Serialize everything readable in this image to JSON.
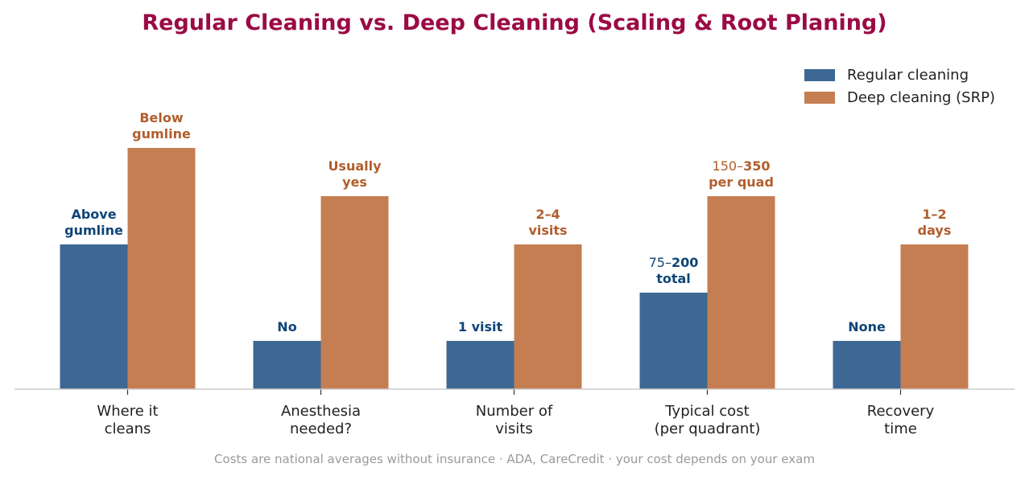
{
  "colors": {
    "title": "#9b0a45",
    "regular": "#3d6893",
    "deep": "#c57e52",
    "regular_label": "#0f4577",
    "deep_label": "#b15e2d",
    "axis": "#cccccc",
    "note": "#9a9a9a",
    "tick_text": "#222222"
  },
  "chart_data": {
    "type": "bar",
    "title": "Regular Cleaning vs. Deep Cleaning (Scaling & Root Planing)",
    "xlabel": "",
    "ylabel": "",
    "ylim": [
      0,
      6
    ],
    "grid": false,
    "legend_position": "top-right",
    "categories": [
      "Where it\ncleans",
      "Anesthesia\nneeded?",
      "Number of\nvisits",
      "Typical cost\n(per quadrant)",
      "Recovery\ntime"
    ],
    "series": [
      {
        "name": "Regular cleaning",
        "values": [
          3,
          1,
          1,
          2,
          1
        ],
        "labels": [
          [
            [
              {
                "t": "Above",
                "b": true
              }
            ],
            [
              {
                "t": "gumline",
                "b": true
              }
            ]
          ],
          [
            [
              {
                "t": "No",
                "b": true
              }
            ]
          ],
          [
            [
              {
                "t": "1 visit",
                "b": true
              }
            ]
          ],
          [
            [
              {
                "t": "75–",
                "b": false
              },
              {
                "t": "200",
                "b": true
              }
            ],
            [
              {
                "t": "total",
                "b": true
              }
            ]
          ],
          [
            [
              {
                "t": "None",
                "b": true
              }
            ]
          ]
        ]
      },
      {
        "name": "Deep cleaning (SRP)",
        "values": [
          5,
          4,
          3,
          4,
          3
        ],
        "labels": [
          [
            [
              {
                "t": "Below",
                "b": true
              }
            ],
            [
              {
                "t": "gumline",
                "b": true
              }
            ]
          ],
          [
            [
              {
                "t": "Usually",
                "b": true
              }
            ],
            [
              {
                "t": "yes",
                "b": true
              }
            ]
          ],
          [
            [
              {
                "t": "2–4",
                "b": true
              }
            ],
            [
              {
                "t": "visits",
                "b": true
              }
            ]
          ],
          [
            [
              {
                "t": "150–",
                "b": false
              },
              {
                "t": "350",
                "b": true
              }
            ],
            [
              {
                "t": "per quad",
                "b": true
              }
            ]
          ],
          [
            [
              {
                "t": "1–2",
                "b": true
              }
            ],
            [
              {
                "t": "days",
                "b": true
              }
            ]
          ]
        ]
      }
    ]
  },
  "footnote": "Costs are national averages without insurance · ADA, CareCredit · your cost depends on your exam"
}
